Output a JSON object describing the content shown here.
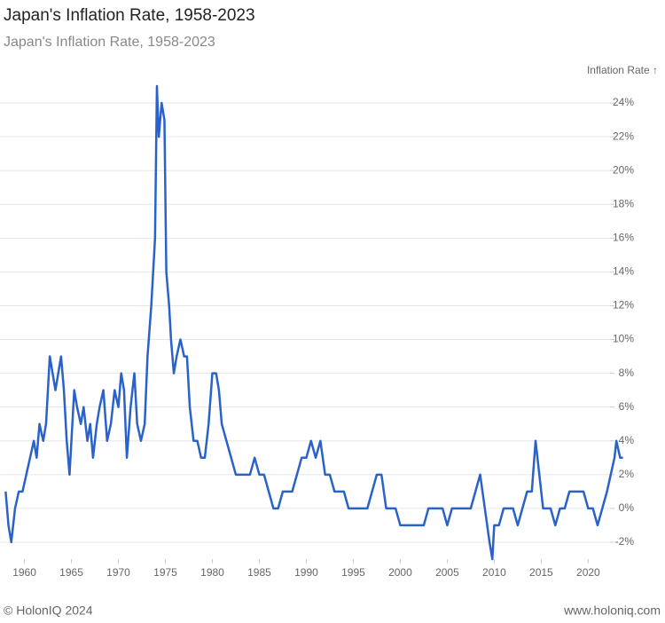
{
  "chart_data": {
    "type": "line",
    "title": "Japan's Inflation Rate, 1958-2023",
    "subtitle": "Japan's Inflation Rate, 1958-2023",
    "y_axis_label": "Inflation Rate ↑",
    "footer_left": "© HolonIQ 2024",
    "footer_right": "www.holoniq.com",
    "xlim": [
      1957.4,
      2024.4
    ],
    "xticks": [
      1960,
      1965,
      1970,
      1975,
      1980,
      1985,
      1990,
      1995,
      2000,
      2005,
      2010,
      2015,
      2020
    ],
    "ylim": [
      -3,
      25.5
    ],
    "yticks": [
      {
        "value": -2,
        "label": "-2%"
      },
      {
        "value": 0,
        "label": "0%"
      },
      {
        "value": 2,
        "label": "2%"
      },
      {
        "value": 4,
        "label": "4%"
      },
      {
        "value": 6,
        "label": "6%"
      },
      {
        "value": 8,
        "label": "8%"
      },
      {
        "value": 10,
        "label": "10%"
      },
      {
        "value": 12,
        "label": "12%"
      },
      {
        "value": 14,
        "label": "14%"
      },
      {
        "value": 16,
        "label": "16%"
      },
      {
        "value": 18,
        "label": "18%"
      },
      {
        "value": 20,
        "label": "20%"
      },
      {
        "value": 22,
        "label": "22%"
      },
      {
        "value": 24,
        "label": "24%"
      }
    ],
    "grid": true,
    "x": [
      1958.0,
      1958.3,
      1958.6,
      1959.0,
      1959.4,
      1959.8,
      1960.2,
      1960.6,
      1961.0,
      1961.3,
      1961.6,
      1962.0,
      1962.3,
      1962.7,
      1963.0,
      1963.3,
      1963.6,
      1963.9,
      1964.2,
      1964.5,
      1964.8,
      1965.0,
      1965.3,
      1965.6,
      1966.0,
      1966.3,
      1966.7,
      1967.0,
      1967.3,
      1967.7,
      1968.0,
      1968.4,
      1968.8,
      1969.2,
      1969.6,
      1970.0,
      1970.3,
      1970.6,
      1970.9,
      1971.3,
      1971.7,
      1972.0,
      1972.4,
      1972.8,
      1973.1,
      1973.5,
      1973.9,
      1974.1,
      1974.3,
      1974.6,
      1974.9,
      1975.1,
      1975.4,
      1975.6,
      1975.9,
      1976.2,
      1976.6,
      1977.0,
      1977.3,
      1977.6,
      1978.0,
      1978.4,
      1978.8,
      1979.2,
      1979.6,
      1980.0,
      1980.4,
      1980.7,
      1981.0,
      1981.5,
      1982.0,
      1982.5,
      1983.0,
      1983.5,
      1984.0,
      1984.5,
      1985.0,
      1985.5,
      1986.0,
      1986.5,
      1987.0,
      1987.5,
      1988.0,
      1988.5,
      1989.0,
      1989.5,
      1990.0,
      1990.5,
      1991.0,
      1991.5,
      1992.0,
      1992.5,
      1993.0,
      1993.5,
      1994.0,
      1994.5,
      1995.0,
      1995.5,
      1996.0,
      1996.5,
      1997.0,
      1997.5,
      1998.0,
      1998.5,
      1999.0,
      1999.5,
      2000.0,
      2000.5,
      2001.0,
      2001.5,
      2002.0,
      2002.5,
      2003.0,
      2003.5,
      2004.0,
      2004.5,
      2005.0,
      2005.5,
      2006.0,
      2006.5,
      2007.0,
      2007.5,
      2008.0,
      2008.5,
      2009.0,
      2009.5,
      2009.8,
      2010.0,
      2010.5,
      2011.0,
      2011.5,
      2012.0,
      2012.5,
      2013.0,
      2013.5,
      2014.0,
      2014.4,
      2014.8,
      2015.2,
      2015.6,
      2016.0,
      2016.5,
      2017.0,
      2017.5,
      2018.0,
      2018.5,
      2019.0,
      2019.5,
      2020.0,
      2020.5,
      2021.0,
      2021.5,
      2022.0,
      2022.4,
      2022.8,
      2023.0,
      2023.4,
      2023.7
    ],
    "series": [
      {
        "name": "Inflation Rate",
        "color": "#2a62c9",
        "values": [
          1,
          -1,
          -2,
          0,
          1,
          1,
          2,
          3,
          4,
          3,
          5,
          4,
          5,
          9,
          8,
          7,
          8,
          9,
          7,
          4,
          2,
          4,
          7,
          6,
          5,
          6,
          4,
          5,
          3,
          5,
          6,
          7,
          4,
          5,
          7,
          6,
          8,
          7,
          3,
          6,
          8,
          5,
          4,
          5,
          9,
          12,
          16,
          25,
          22,
          24,
          23,
          14,
          12,
          10,
          8,
          9,
          10,
          9,
          9,
          6,
          4,
          4,
          3,
          3,
          5,
          8,
          8,
          7,
          5,
          4,
          3,
          2,
          2,
          2,
          2,
          3,
          2,
          2,
          1,
          0,
          0,
          1,
          1,
          1,
          2,
          3,
          3,
          4,
          3,
          4,
          2,
          2,
          1,
          1,
          1,
          0,
          0,
          0,
          0,
          0,
          1,
          2,
          2,
          0,
          0,
          0,
          -1,
          -1,
          -1,
          -1,
          -1,
          -1,
          0,
          0,
          0,
          0,
          -1,
          0,
          0,
          0,
          0,
          0,
          1,
          2,
          0,
          -2,
          -3,
          -1,
          -1,
          0,
          0,
          0,
          -1,
          0,
          1,
          1,
          4,
          2,
          0,
          0,
          0,
          -1,
          0,
          0,
          1,
          1,
          1,
          1,
          0,
          0,
          -1,
          0,
          1,
          2,
          3,
          4,
          3,
          3
        ]
      }
    ]
  }
}
